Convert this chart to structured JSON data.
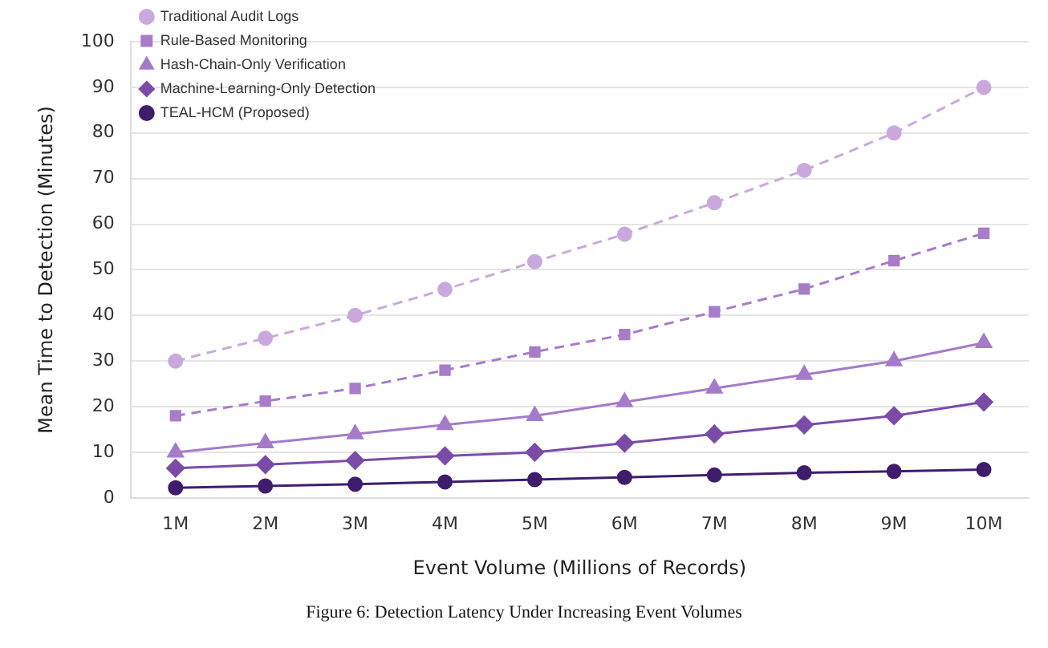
{
  "chart_data": {
    "type": "line",
    "xlabel": "Event Volume (Millions of Records)",
    "ylabel": "Mean Time to Detection (Minutes)",
    "annotations": [
      "Figure 6: Detection Latency Under Increasing Event Volumes"
    ],
    "categories": [
      "1M",
      "2M",
      "3M",
      "4M",
      "5M",
      "6M",
      "7M",
      "8M",
      "9M",
      "10M"
    ],
    "ylim": [
      0,
      100
    ],
    "yticks": [
      0,
      10,
      20,
      30,
      40,
      50,
      60,
      70,
      80,
      90,
      100
    ],
    "grid": "y",
    "legend": "top left",
    "series": [
      {
        "name": "Traditional Audit Logs",
        "color": "#c9a9dd",
        "marker": "circle",
        "line_style": "dashed",
        "values": [
          30,
          35,
          40,
          45.7,
          51.8,
          57.8,
          64.7,
          71.8,
          80,
          90
        ]
      },
      {
        "name": "Rule-Based Monitoring",
        "color": "#a77cc8",
        "marker": "square",
        "line_style": "dashed",
        "values": [
          18,
          21.2,
          24,
          28,
          32,
          35.8,
          40.8,
          45.8,
          52,
          58
        ]
      },
      {
        "name": "Hash-Chain-Only Verification",
        "color": "#a47bc9",
        "marker": "triangle",
        "line_style": "solid",
        "values": [
          10,
          12,
          14,
          16,
          18,
          21,
          24,
          27,
          30,
          34
        ]
      },
      {
        "name": "Machine-Learning-Only Detection",
        "color": "#7a4ca8",
        "marker": "diamond",
        "line_style": "solid",
        "values": [
          6.5,
          7.3,
          8.2,
          9.2,
          10,
          12,
          14,
          16,
          18,
          21
        ]
      },
      {
        "name": "TEAL-HCM (Proposed)",
        "color": "#3e1d6c",
        "marker": "circle",
        "line_style": "solid",
        "values": [
          2.2,
          2.6,
          3,
          3.5,
          4,
          4.5,
          5,
          5.5,
          5.8,
          6.2
        ]
      }
    ]
  }
}
